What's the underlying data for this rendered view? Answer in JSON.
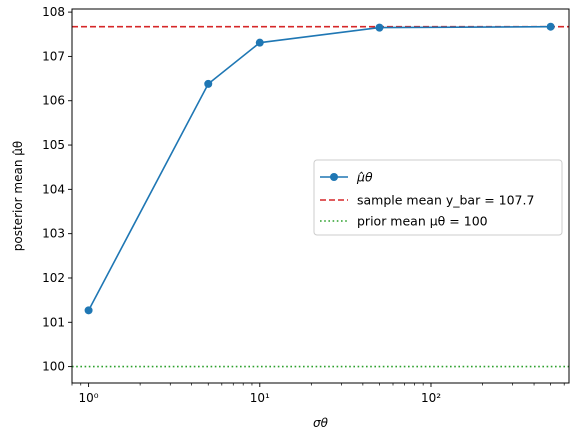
{
  "chart_data": {
    "type": "line",
    "title": "",
    "xlabel": "σθ",
    "ylabel": "posterior mean μ̂θ",
    "xscale": "log",
    "xlim": [
      0.8,
      640
    ],
    "ylim": [
      99.63,
      108.07
    ],
    "xticks": [
      {
        "value": 1,
        "label": "10⁰"
      },
      {
        "value": 10,
        "label": "10¹"
      },
      {
        "value": 100,
        "label": "10²"
      }
    ],
    "yticks": [
      100,
      101,
      102,
      103,
      104,
      105,
      106,
      107,
      108
    ],
    "grid": false,
    "legend_position": "center-right",
    "series": [
      {
        "name": "μ̂θ",
        "style": "solid-marker",
        "color": "#1f77b4",
        "x": [
          1,
          5,
          10,
          50,
          500
        ],
        "y": [
          101.27,
          106.38,
          107.31,
          107.65,
          107.67
        ]
      }
    ],
    "reference_lines": [
      {
        "name": "sample mean y_bar = 107.7",
        "y": 107.67,
        "style": "dashed",
        "color": "#d62728"
      },
      {
        "name": "prior mean μθ = 100",
        "y": 100,
        "style": "dotted",
        "color": "#2ca02c"
      }
    ]
  }
}
